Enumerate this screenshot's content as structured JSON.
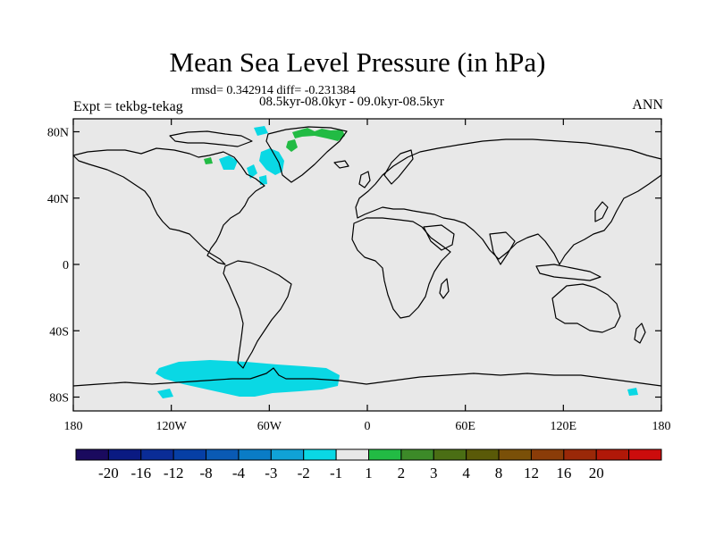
{
  "title": "Mean Sea Level Pressure (in hPa)",
  "stats": "rmsd= 0.342914 diff= -0.231384",
  "period": "08.5kyr-08.0kyr - 09.0kyr-08.5kyr",
  "experiment": "Expt = tekbg-tekag",
  "season": "ANN",
  "y_ticks": [
    {
      "label": "80N",
      "lat": 80
    },
    {
      "label": "40N",
      "lat": 40
    },
    {
      "label": "0",
      "lat": 0
    },
    {
      "label": "40S",
      "lat": -40
    },
    {
      "label": "80S",
      "lat": -80
    }
  ],
  "x_ticks": [
    {
      "label": "180",
      "lon": -180
    },
    {
      "label": "120W",
      "lon": -120
    },
    {
      "label": "60W",
      "lon": -60
    },
    {
      "label": "0",
      "lon": 0
    },
    {
      "label": "60E",
      "lon": 60
    },
    {
      "label": "120E",
      "lon": 120
    },
    {
      "label": "180",
      "lon": 180
    }
  ],
  "colorbar": {
    "colors": [
      "#1a0a5e",
      "#0a1a82",
      "#0a2c96",
      "#063fa5",
      "#0a5ab4",
      "#0a7cc6",
      "#10a2d6",
      "#0ad8e4",
      "#e8e8e8",
      "#22bb44",
      "#3c8a28",
      "#4a6e14",
      "#5a5a08",
      "#7a5008",
      "#8a3c08",
      "#9a2808",
      "#b01808",
      "#cc0c0c"
    ],
    "labels": [
      "-20",
      "-16",
      "-12",
      "-8",
      "-4",
      "-3",
      "-2",
      "-1",
      "1",
      "2",
      "3",
      "4",
      "8",
      "12",
      "16",
      "20"
    ]
  },
  "colors": {
    "ocean_bg": "#e8e8e8",
    "negative_anomaly": "#0ad8e4",
    "positive_anomaly": "#22bb44",
    "coast": "#000000"
  }
}
